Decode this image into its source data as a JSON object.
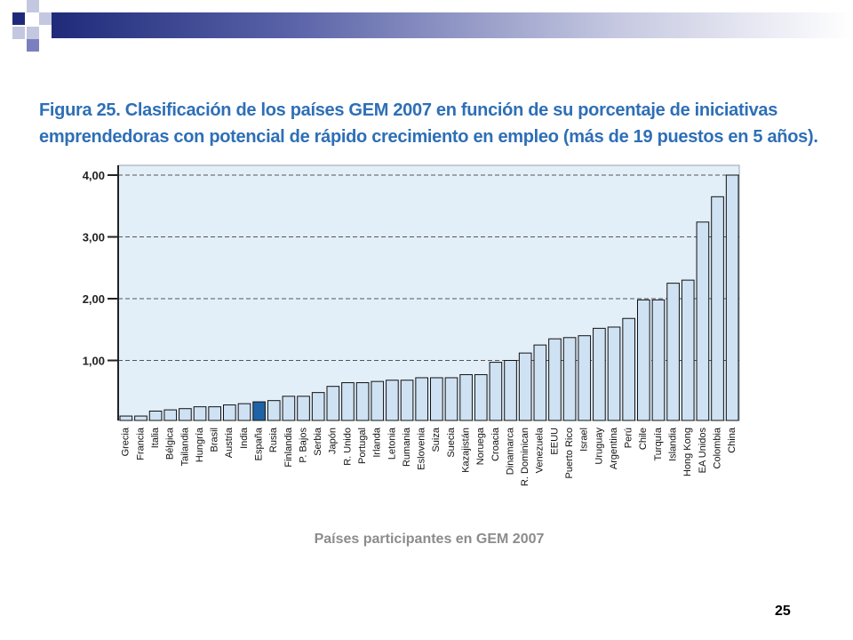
{
  "slide": {
    "figure_title": "Figura 25. Clasificación de los países GEM 2007 en función de su porcentaje de iniciativas emprendedoras con potencial de rápido crecimiento en empleo (más de 19 puestos en 5 años).",
    "slide_number": "25"
  },
  "colors": {
    "plot_bg": "#e2eef8",
    "bar_fill": "#cfe2f3",
    "highlight_fill": "#1f63a6",
    "title_color": "#2e6fb6",
    "xlabel_color": "#8c8c8c"
  },
  "chart_data": {
    "type": "bar",
    "title": "",
    "xlabel": "Países participantes en GEM 2007",
    "ylabel": "",
    "ylim": [
      0,
      4
    ],
    "yticks": [
      1,
      2,
      3,
      4
    ],
    "ytick_labels": [
      "1,00",
      "2,00",
      "3,00",
      "4,00"
    ],
    "grid": true,
    "highlight": "España",
    "categories": [
      "Grecia",
      "Francia",
      "Italia",
      "Bélgica",
      "Tailandia",
      "Hungría",
      "Brasil",
      "Austria",
      "India",
      "España",
      "Rusia",
      "Finlandia",
      "P. Bajos",
      "Serbia",
      "Japón",
      "R. Unido",
      "Portugal",
      "Irlanda",
      "Letonia",
      "Rumania",
      "Eslovenia",
      "Suiza",
      "Suecia",
      "Kazajistán",
      "Noruega",
      "Croacia",
      "Dinamarca",
      "R. Dominican",
      "Venezuela",
      "EEUU",
      "Puerto Rico",
      "Israel",
      "Uruguay",
      "Argentina",
      "Perú",
      "Chile",
      "Turquía",
      "Islandia",
      "Hong Kong",
      "EA Unidos",
      "Colombia",
      "China"
    ],
    "values": [
      0.1,
      0.1,
      0.18,
      0.2,
      0.22,
      0.25,
      0.25,
      0.28,
      0.3,
      0.33,
      0.35,
      0.42,
      0.42,
      0.48,
      0.58,
      0.64,
      0.64,
      0.66,
      0.68,
      0.68,
      0.72,
      0.72,
      0.72,
      0.77,
      0.77,
      0.97,
      1.0,
      1.12,
      1.25,
      1.35,
      1.37,
      1.4,
      1.52,
      1.54,
      1.68,
      1.98,
      1.98,
      2.25,
      2.3,
      3.24,
      3.65,
      4.0
    ]
  }
}
